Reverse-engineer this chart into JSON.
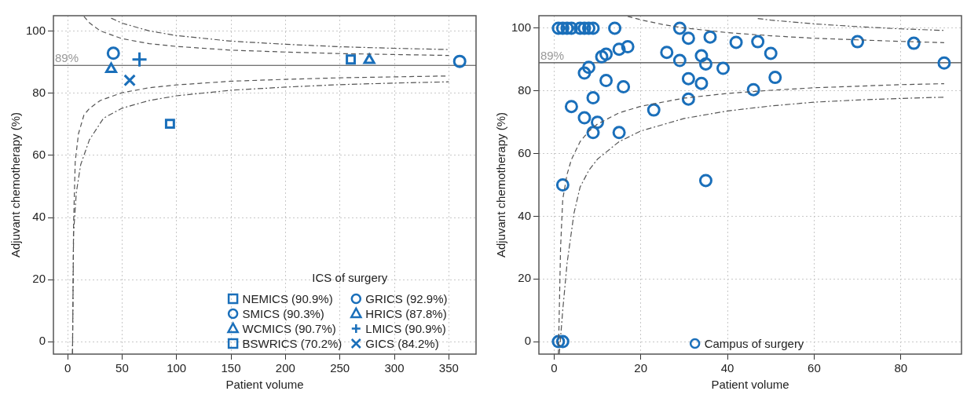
{
  "chart_data": [
    {
      "type": "scatter",
      "xlabel": "Patient volume",
      "ylabel": "Adjuvant chemotherapy (%)",
      "legend_title": "ICS of surgery",
      "legend": "bottom right",
      "grid": true,
      "xlim": [
        -13,
        375
      ],
      "xticks": [
        0,
        50,
        100,
        150,
        200,
        250,
        300,
        350
      ],
      "ylim": [
        -4,
        105
      ],
      "yticks": [
        0,
        20,
        40,
        60,
        80,
        100
      ],
      "ref_lines": [
        {
          "axis": "y",
          "value": 89,
          "label": "89%"
        }
      ],
      "series": [
        {
          "type": "line",
          "color": "#555555",
          "line_style": "dashed",
          "marker": "none",
          "x": [
            15,
            20,
            30,
            50,
            75,
            100,
            150,
            200,
            250,
            300,
            350
          ],
          "values": [
            104.8,
            102.7,
            100.1,
            97.6,
            96.0,
            95.1,
            93.9,
            93.3,
            92.8,
            92.5,
            92.2
          ]
        },
        {
          "type": "line",
          "color": "#555555",
          "line_style": "dotted",
          "marker": "none",
          "x": [
            40,
            50,
            75,
            100,
            150,
            200,
            250,
            300,
            350
          ],
          "values": [
            104.2,
            102.6,
            100.1,
            98.6,
            96.8,
            95.8,
            95.0,
            94.5,
            94.1
          ]
        },
        {
          "type": "line",
          "color": "#555555",
          "line_style": "dashed",
          "marker": "none",
          "x": [
            4.5,
            5.5,
            7,
            10,
            15,
            20,
            30,
            50,
            75,
            100,
            150,
            200,
            250,
            300,
            350
          ],
          "values": [
            -4,
            38,
            58,
            67,
            73,
            75.1,
            77.7,
            80.2,
            81.8,
            82.7,
            83.9,
            84.5,
            85.0,
            85.3,
            85.6
          ]
        },
        {
          "type": "line",
          "color": "#555555",
          "line_style": "dotted",
          "marker": "none",
          "x": [
            4.5,
            5.5,
            8,
            12,
            20,
            33,
            50,
            75,
            100,
            150,
            200,
            250,
            300,
            350
          ],
          "values": [
            -4,
            35,
            48,
            57,
            65,
            72,
            75.2,
            77.7,
            79.2,
            81,
            82,
            82.8,
            83.3,
            83.7
          ]
        },
        {
          "name": "NEMICS (90.9%)",
          "color": "#1a6fba",
          "marker": "square",
          "x": [
            260
          ],
          "values": [
            90.9
          ]
        },
        {
          "name": "SMICS (90.3%)",
          "color": "#1a6fba",
          "marker": "circle",
          "x": [
            360
          ],
          "values": [
            90.3
          ]
        },
        {
          "name": "WCMICS (90.7%)",
          "color": "#1a6fba",
          "marker": "triangle",
          "x": [
            277
          ],
          "values": [
            90.7
          ]
        },
        {
          "name": "BSWRICS (70.2%)",
          "color": "#1a6fba",
          "marker": "square",
          "x": [
            94
          ],
          "values": [
            70.2
          ]
        },
        {
          "name": "GRICS (92.9%)",
          "color": "#1a6fba",
          "marker": "circle",
          "x": [
            42
          ],
          "values": [
            92.9
          ]
        },
        {
          "name": "HRICS (87.8%)",
          "color": "#1a6fba",
          "marker": "triangle",
          "x": [
            40
          ],
          "values": [
            87.8
          ]
        },
        {
          "name": "LMICS (90.9%)",
          "color": "#1a6fba",
          "marker": "cross",
          "x": [
            66
          ],
          "values": [
            90.9
          ]
        },
        {
          "name": "GICS (84.2%)",
          "color": "#1a6fba",
          "marker": "x",
          "x": [
            57
          ],
          "values": [
            84.2
          ]
        }
      ]
    },
    {
      "type": "scatter",
      "xlabel": "Patient volume",
      "ylabel": "Adjuvant chemotherapy (%)",
      "legend": "bottom",
      "grid": true,
      "xlim": [
        -3.5,
        94
      ],
      "xticks": [
        0,
        20,
        40,
        60,
        80
      ],
      "ylim": [
        -4,
        104
      ],
      "yticks": [
        0,
        20,
        40,
        60,
        80,
        100
      ],
      "ref_lines": [
        {
          "axis": "y",
          "value": 89,
          "label": "89%"
        }
      ],
      "series": [
        {
          "type": "line",
          "color": "#555555",
          "line_style": "dashed",
          "marker": "none",
          "x": [
            17,
            20,
            25,
            30,
            40,
            50,
            60,
            70,
            80,
            90
          ],
          "values": [
            103.8,
            102.7,
            101.2,
            100.1,
            98.6,
            97.6,
            96.8,
            96.3,
            95.8,
            95.4
          ]
        },
        {
          "type": "line",
          "color": "#555555",
          "line_style": "dotted",
          "marker": "none",
          "x": [
            47,
            50,
            60,
            70,
            80,
            90
          ],
          "values": [
            103.1,
            102.6,
            101.4,
            100.5,
            99.8,
            99.3
          ]
        },
        {
          "type": "line",
          "color": "#555555",
          "line_style": "dashed",
          "marker": "none",
          "x": [
            1,
            1.5,
            2,
            3,
            4,
            6,
            8,
            10,
            15,
            20,
            30,
            40,
            50,
            60,
            70,
            80,
            90
          ],
          "values": [
            -4,
            30,
            45.4,
            53.4,
            58.1,
            63.8,
            67.1,
            69.4,
            73.0,
            75.1,
            77.7,
            79.2,
            80.2,
            81.0,
            81.5,
            82.0,
            82.3
          ]
        },
        {
          "type": "line",
          "color": "#555555",
          "line_style": "dotted",
          "marker": "none",
          "x": [
            1.2,
            2,
            3,
            4.6,
            6,
            8,
            10,
            15,
            20,
            30,
            40,
            50,
            60,
            70,
            80,
            90
          ],
          "values": [
            -4,
            10,
            25,
            41,
            49.3,
            54.6,
            58.2,
            63.8,
            67.2,
            71.2,
            73.6,
            75.2,
            76.4,
            77.1,
            77.6,
            78.0
          ]
        },
        {
          "name": "Campus of surgery",
          "color": "#1a6fba",
          "marker": "circle",
          "x": [
            1,
            2,
            3,
            4,
            6,
            7,
            8,
            9,
            14,
            29,
            31,
            36,
            42,
            47,
            70,
            83,
            90,
            50,
            17,
            15,
            12,
            11,
            8,
            7,
            12,
            16,
            9,
            4,
            7,
            10,
            9,
            15,
            23,
            26,
            29,
            34,
            35,
            39,
            31,
            34,
            31,
            46,
            51,
            2,
            35,
            1,
            2
          ],
          "values": [
            100,
            100,
            100,
            100,
            100,
            100,
            100,
            100,
            100,
            100,
            96.8,
            97.2,
            95.5,
            95.7,
            95.7,
            95.2,
            88.9,
            92,
            94.1,
            93.3,
            91.7,
            90.9,
            87.5,
            85.7,
            83.3,
            81.3,
            77.8,
            75,
            71.4,
            70,
            66.7,
            66.7,
            73.9,
            92.3,
            89.7,
            91.2,
            88.6,
            87.2,
            83.9,
            82.4,
            77.4,
            80.4,
            84.3,
            50,
            51.4,
            0,
            0
          ]
        }
      ]
    }
  ]
}
